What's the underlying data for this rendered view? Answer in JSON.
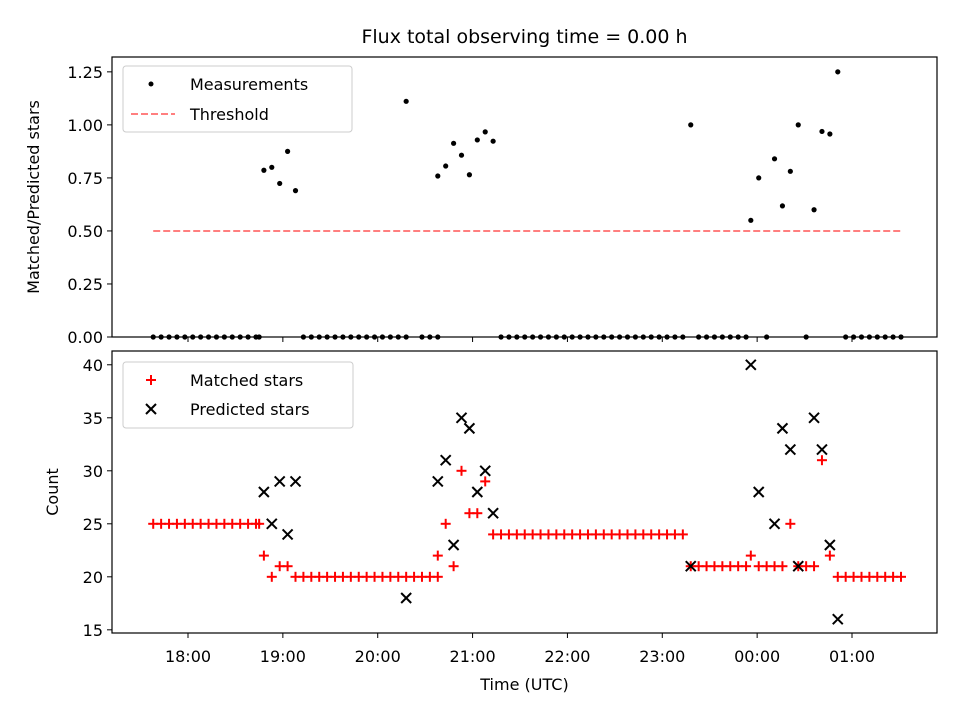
{
  "chart_data": [
    {
      "type": "scatter",
      "title": "Flux total observing time = 0.00 h",
      "xlabel": "",
      "ylabel": "Matched/Predicted stars",
      "ylim": [
        0,
        1.32
      ],
      "yticks": [
        "0.00",
        "0.25",
        "0.50",
        "0.75",
        "1.00",
        "1.25"
      ],
      "legend_position": "upper left",
      "series": [
        {
          "name": "Measurements",
          "marker": "dot",
          "color": "#000000",
          "points": [
            [
              "17:38",
              0
            ],
            [
              "17:43",
              0
            ],
            [
              "17:48",
              0
            ],
            [
              "17:53",
              0
            ],
            [
              "17:58",
              0
            ],
            [
              "18:03",
              0
            ],
            [
              "18:08",
              0
            ],
            [
              "18:13",
              0
            ],
            [
              "18:18",
              0
            ],
            [
              "18:23",
              0
            ],
            [
              "18:28",
              0
            ],
            [
              "18:33",
              0
            ],
            [
              "18:38",
              0
            ],
            [
              "18:43",
              0
            ],
            [
              "18:45",
              0
            ],
            [
              "18:48",
              0.786
            ],
            [
              "18:53",
              0.8
            ],
            [
              "18:58",
              0.724
            ],
            [
              "19:03",
              0.875
            ],
            [
              "19:08",
              0.69
            ],
            [
              "19:13",
              0
            ],
            [
              "19:18",
              0
            ],
            [
              "19:23",
              0
            ],
            [
              "19:28",
              0
            ],
            [
              "19:33",
              0
            ],
            [
              "19:38",
              0
            ],
            [
              "19:43",
              0
            ],
            [
              "19:48",
              0
            ],
            [
              "19:53",
              0
            ],
            [
              "19:58",
              0
            ],
            [
              "20:03",
              0
            ],
            [
              "20:08",
              0
            ],
            [
              "20:13",
              0
            ],
            [
              "20:18",
              0
            ],
            [
              "20:18",
              1.111
            ],
            [
              "20:28",
              0
            ],
            [
              "20:33",
              0
            ],
            [
              "20:38",
              0
            ],
            [
              "20:38",
              0.759
            ],
            [
              "20:43",
              0.806
            ],
            [
              "20:48",
              0.913
            ],
            [
              "20:53",
              0.857
            ],
            [
              "20:58",
              0.765
            ],
            [
              "21:03",
              0.929
            ],
            [
              "21:08",
              0.967
            ],
            [
              "21:13",
              0.923
            ],
            [
              "21:18",
              0
            ],
            [
              "21:23",
              0
            ],
            [
              "21:28",
              0
            ],
            [
              "21:33",
              0
            ],
            [
              "21:38",
              0
            ],
            [
              "21:43",
              0
            ],
            [
              "21:48",
              0
            ],
            [
              "21:53",
              0
            ],
            [
              "21:58",
              0
            ],
            [
              "22:03",
              0
            ],
            [
              "22:08",
              0
            ],
            [
              "22:13",
              0
            ],
            [
              "22:18",
              0
            ],
            [
              "22:23",
              0
            ],
            [
              "22:28",
              0
            ],
            [
              "22:33",
              0
            ],
            [
              "22:38",
              0
            ],
            [
              "22:43",
              0
            ],
            [
              "22:48",
              0
            ],
            [
              "22:53",
              0
            ],
            [
              "22:58",
              0
            ],
            [
              "23:03",
              0
            ],
            [
              "23:08",
              0
            ],
            [
              "23:13",
              0
            ],
            [
              "23:18",
              1.0
            ],
            [
              "23:23",
              0
            ],
            [
              "23:28",
              0
            ],
            [
              "23:33",
              0
            ],
            [
              "23:38",
              0
            ],
            [
              "23:43",
              0
            ],
            [
              "23:48",
              0
            ],
            [
              "23:53",
              0
            ],
            [
              "23:56",
              0.55
            ],
            [
              "00:01",
              0.75
            ],
            [
              "00:06",
              0
            ],
            [
              "00:11",
              0.84
            ],
            [
              "00:16",
              0.618
            ],
            [
              "00:21",
              0.781
            ],
            [
              "00:26",
              1.0
            ],
            [
              "00:31",
              0
            ],
            [
              "00:36",
              0.6
            ],
            [
              "00:41",
              0.969
            ],
            [
              "00:46",
              0.957
            ],
            [
              "00:51",
              1.25
            ],
            [
              "00:56",
              0
            ],
            [
              "01:01",
              0
            ],
            [
              "01:06",
              0
            ],
            [
              "01:11",
              0
            ],
            [
              "01:16",
              0
            ],
            [
              "01:21",
              0
            ],
            [
              "01:26",
              0
            ],
            [
              "01:31",
              0
            ]
          ]
        },
        {
          "name": "Threshold",
          "marker": "dashed-line",
          "color": "#ff7f7f",
          "points": [
            [
              "17:38",
              0.5
            ],
            [
              "01:31",
              0.5
            ]
          ]
        }
      ]
    },
    {
      "type": "scatter",
      "title": "",
      "xlabel": "Time (UTC)",
      "ylabel": "Count",
      "ylim": [
        14.7,
        41.3
      ],
      "yticks": [
        "15",
        "20",
        "25",
        "30",
        "35",
        "40"
      ],
      "xticks": [
        "18:00",
        "19:00",
        "20:00",
        "21:00",
        "22:00",
        "23:00",
        "00:00",
        "01:00"
      ],
      "legend_position": "upper left",
      "series": [
        {
          "name": "Matched stars",
          "marker": "plus",
          "color": "#ff0000",
          "points": [
            [
              "17:38",
              25
            ],
            [
              "17:43",
              25
            ],
            [
              "17:48",
              25
            ],
            [
              "17:53",
              25
            ],
            [
              "17:58",
              25
            ],
            [
              "18:03",
              25
            ],
            [
              "18:08",
              25
            ],
            [
              "18:13",
              25
            ],
            [
              "18:18",
              25
            ],
            [
              "18:23",
              25
            ],
            [
              "18:28",
              25
            ],
            [
              "18:33",
              25
            ],
            [
              "18:38",
              25
            ],
            [
              "18:43",
              25
            ],
            [
              "18:45",
              25
            ],
            [
              "18:48",
              22
            ],
            [
              "18:53",
              20
            ],
            [
              "18:58",
              21
            ],
            [
              "19:03",
              21
            ],
            [
              "19:08",
              20
            ],
            [
              "19:13",
              20
            ],
            [
              "19:18",
              20
            ],
            [
              "19:23",
              20
            ],
            [
              "19:28",
              20
            ],
            [
              "19:33",
              20
            ],
            [
              "19:38",
              20
            ],
            [
              "19:43",
              20
            ],
            [
              "19:48",
              20
            ],
            [
              "19:53",
              20
            ],
            [
              "19:58",
              20
            ],
            [
              "20:03",
              20
            ],
            [
              "20:08",
              20
            ],
            [
              "20:13",
              20
            ],
            [
              "20:18",
              20
            ],
            [
              "20:23",
              20
            ],
            [
              "20:28",
              20
            ],
            [
              "20:33",
              20
            ],
            [
              "20:38",
              20
            ],
            [
              "20:38",
              22
            ],
            [
              "20:43",
              25
            ],
            [
              "20:48",
              21
            ],
            [
              "20:53",
              30
            ],
            [
              "20:58",
              26
            ],
            [
              "21:03",
              26
            ],
            [
              "21:08",
              29
            ],
            [
              "21:13",
              24
            ],
            [
              "21:18",
              24
            ],
            [
              "21:23",
              24
            ],
            [
              "21:28",
              24
            ],
            [
              "21:33",
              24
            ],
            [
              "21:38",
              24
            ],
            [
              "21:43",
              24
            ],
            [
              "21:48",
              24
            ],
            [
              "21:53",
              24
            ],
            [
              "21:58",
              24
            ],
            [
              "22:03",
              24
            ],
            [
              "22:08",
              24
            ],
            [
              "22:13",
              24
            ],
            [
              "22:18",
              24
            ],
            [
              "22:23",
              24
            ],
            [
              "22:28",
              24
            ],
            [
              "22:33",
              24
            ],
            [
              "22:38",
              24
            ],
            [
              "22:43",
              24
            ],
            [
              "22:48",
              24
            ],
            [
              "22:53",
              24
            ],
            [
              "22:58",
              24
            ],
            [
              "23:03",
              24
            ],
            [
              "23:08",
              24
            ],
            [
              "23:13",
              24
            ],
            [
              "23:18",
              21
            ],
            [
              "23:23",
              21
            ],
            [
              "23:28",
              21
            ],
            [
              "23:33",
              21
            ],
            [
              "23:38",
              21
            ],
            [
              "23:43",
              21
            ],
            [
              "23:48",
              21
            ],
            [
              "23:53",
              21
            ],
            [
              "23:56",
              22
            ],
            [
              "00:01",
              21
            ],
            [
              "00:06",
              21
            ],
            [
              "00:11",
              21
            ],
            [
              "00:16",
              21
            ],
            [
              "00:21",
              25
            ],
            [
              "00:26",
              21
            ],
            [
              "00:31",
              21
            ],
            [
              "00:36",
              21
            ],
            [
              "00:41",
              31
            ],
            [
              "00:46",
              22
            ],
            [
              "00:51",
              20
            ],
            [
              "00:56",
              20
            ],
            [
              "01:01",
              20
            ],
            [
              "01:06",
              20
            ],
            [
              "01:11",
              20
            ],
            [
              "01:16",
              20
            ],
            [
              "01:21",
              20
            ],
            [
              "01:26",
              20
            ],
            [
              "01:31",
              20
            ]
          ]
        },
        {
          "name": "Predicted stars",
          "marker": "x",
          "color": "#000000",
          "points": [
            [
              "18:48",
              28
            ],
            [
              "18:53",
              25
            ],
            [
              "18:58",
              29
            ],
            [
              "19:03",
              24
            ],
            [
              "19:08",
              29
            ],
            [
              "20:18",
              18
            ],
            [
              "20:38",
              29
            ],
            [
              "20:43",
              31
            ],
            [
              "20:48",
              23
            ],
            [
              "20:53",
              35
            ],
            [
              "20:58",
              34
            ],
            [
              "21:03",
              28
            ],
            [
              "21:08",
              30
            ],
            [
              "21:13",
              26
            ],
            [
              "23:18",
              21
            ],
            [
              "23:56",
              40
            ],
            [
              "00:01",
              28
            ],
            [
              "00:11",
              25
            ],
            [
              "00:16",
              34
            ],
            [
              "00:21",
              32
            ],
            [
              "00:26",
              21
            ],
            [
              "00:36",
              35
            ],
            [
              "00:41",
              32
            ],
            [
              "00:46",
              23
            ],
            [
              "00:51",
              16
            ]
          ]
        }
      ]
    }
  ]
}
